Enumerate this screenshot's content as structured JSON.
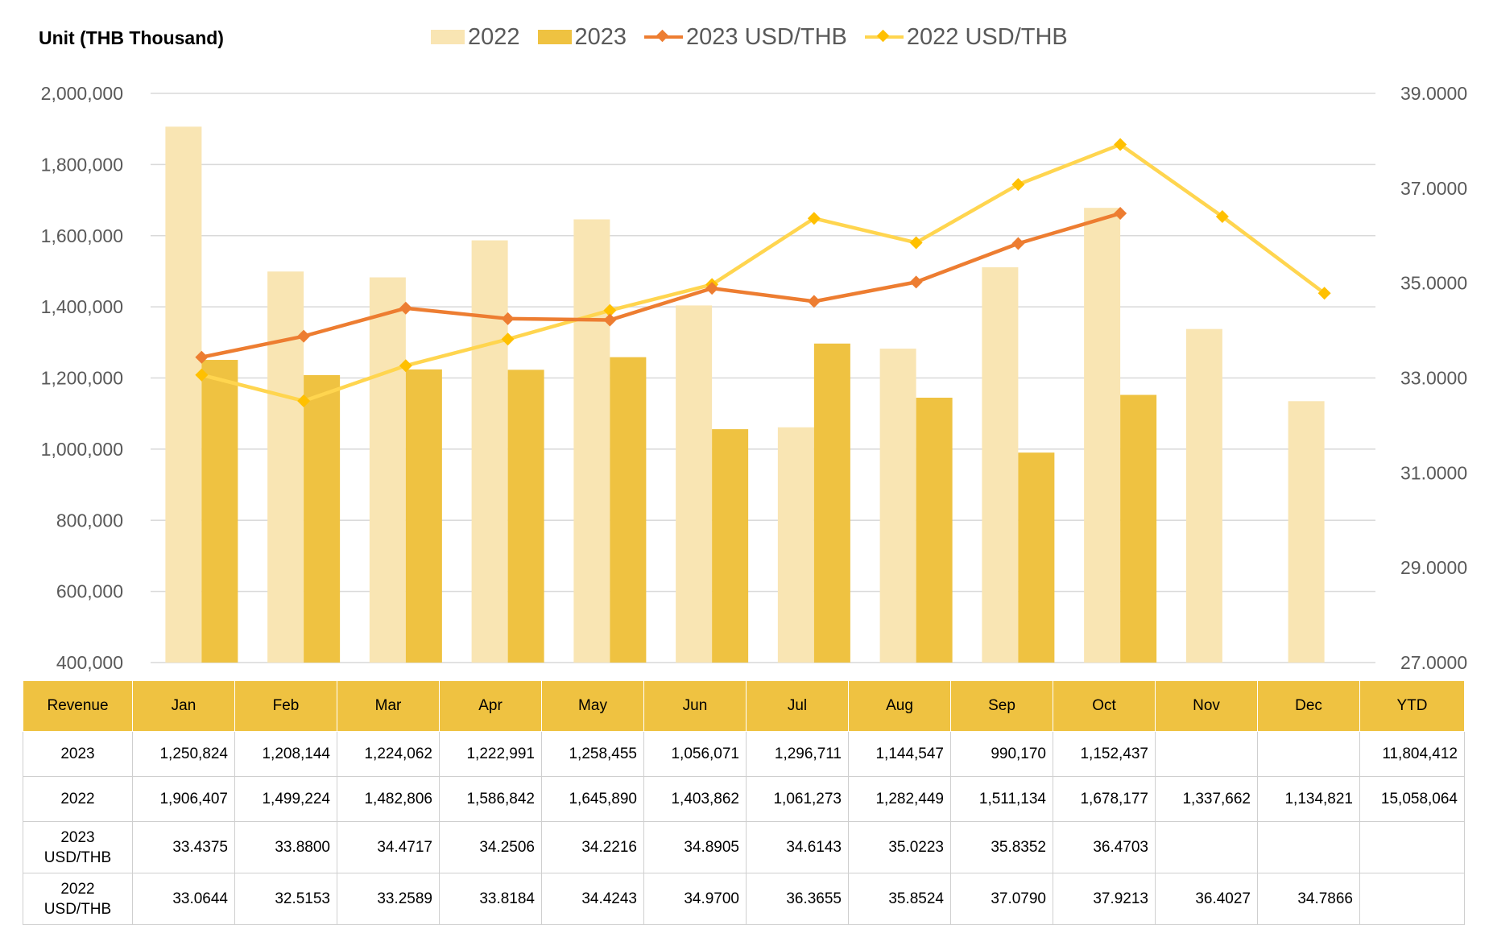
{
  "unit_label": "Unit (THB  Thousand)",
  "colors": {
    "bar_2022": "#f9e5b3",
    "bar_2023": "#efc241",
    "line_2023": "#ed7d31",
    "line_2022": "#ffd54f",
    "grid": "#d9d9d9",
    "header_bg": "#efc241"
  },
  "chart_data": {
    "type": "bar",
    "categories": [
      "Jan",
      "Feb",
      "Mar",
      "Apr",
      "May",
      "Jun",
      "Jul",
      "Aug",
      "Sep",
      "Oct",
      "Nov",
      "Dec"
    ],
    "series": [
      {
        "name": "2022",
        "kind": "bar",
        "axis": "left",
        "values": [
          1906407,
          1499224,
          1482806,
          1586842,
          1645890,
          1403862,
          1061273,
          1282449,
          1511134,
          1678177,
          1337662,
          1134821
        ]
      },
      {
        "name": "2023",
        "kind": "bar",
        "axis": "left",
        "values": [
          1250824,
          1208144,
          1224062,
          1222991,
          1258455,
          1056071,
          1296711,
          1144547,
          990170,
          1152437,
          null,
          null
        ]
      },
      {
        "name": "2023 USD/THB",
        "kind": "line",
        "axis": "right",
        "values": [
          33.4375,
          33.88,
          34.4717,
          34.2506,
          34.2216,
          34.8905,
          34.6143,
          35.0223,
          35.8352,
          36.4703,
          null,
          null
        ]
      },
      {
        "name": "2022 USD/THB",
        "kind": "line",
        "axis": "right",
        "values": [
          33.0644,
          32.5153,
          33.2589,
          33.8184,
          34.4243,
          34.97,
          36.3655,
          35.8524,
          37.079,
          37.9213,
          36.4027,
          34.7866
        ]
      }
    ],
    "left_axis": {
      "min": 400000,
      "max": 2000000,
      "ticks": [
        "400,000",
        "600,000",
        "800,000",
        "1,000,000",
        "1,200,000",
        "1,400,000",
        "1,600,000",
        "1,800,000",
        "2,000,000"
      ]
    },
    "right_axis": {
      "min": 27,
      "max": 39,
      "ticks": [
        "27.0000",
        "29.0000",
        "31.0000",
        "33.0000",
        "35.0000",
        "37.0000",
        "39.0000"
      ]
    },
    "legend_position": "top",
    "grid": true
  },
  "table": {
    "headers": [
      "Revenue",
      "Jan",
      "Feb",
      "Mar",
      "Apr",
      "May",
      "Jun",
      "Jul",
      "Aug",
      "Sep",
      "Oct",
      "Nov",
      "Dec",
      "YTD"
    ],
    "rows": [
      {
        "label": [
          "2023"
        ],
        "cells": [
          "1,250,824",
          "1,208,144",
          "1,224,062",
          "1,222,991",
          "1,258,455",
          "1,056,071",
          "1,296,711",
          "1,144,547",
          "990,170",
          "1,152,437",
          "",
          "",
          "11,804,412"
        ]
      },
      {
        "label": [
          "2022"
        ],
        "cells": [
          "1,906,407",
          "1,499,224",
          "1,482,806",
          "1,586,842",
          "1,645,890",
          "1,403,862",
          "1,061,273",
          "1,282,449",
          "1,511,134",
          "1,678,177",
          "1,337,662",
          "1,134,821",
          "15,058,064"
        ]
      },
      {
        "label": [
          "2023",
          "USD/THB"
        ],
        "cells": [
          "33.4375",
          "33.8800",
          "34.4717",
          "34.2506",
          "34.2216",
          "34.8905",
          "34.6143",
          "35.0223",
          "35.8352",
          "36.4703",
          "",
          "",
          ""
        ]
      },
      {
        "label": [
          "2022",
          "USD/THB"
        ],
        "cells": [
          "33.0644",
          "32.5153",
          "33.2589",
          "33.8184",
          "34.4243",
          "34.9700",
          "36.3655",
          "35.8524",
          "37.0790",
          "37.9213",
          "36.4027",
          "34.7866",
          ""
        ]
      }
    ]
  }
}
